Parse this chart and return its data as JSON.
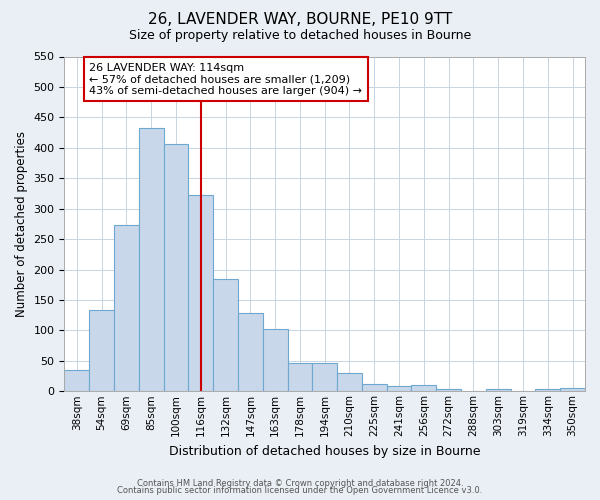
{
  "title": "26, LAVENDER WAY, BOURNE, PE10 9TT",
  "subtitle": "Size of property relative to detached houses in Bourne",
  "xlabel": "Distribution of detached houses by size in Bourne",
  "ylabel": "Number of detached properties",
  "bar_labels": [
    "38sqm",
    "54sqm",
    "69sqm",
    "85sqm",
    "100sqm",
    "116sqm",
    "132sqm",
    "147sqm",
    "163sqm",
    "178sqm",
    "194sqm",
    "210sqm",
    "225sqm",
    "241sqm",
    "256sqm",
    "272sqm",
    "288sqm",
    "303sqm",
    "319sqm",
    "334sqm",
    "350sqm"
  ],
  "bar_values": [
    35,
    133,
    273,
    433,
    407,
    323,
    184,
    128,
    103,
    46,
    46,
    30,
    12,
    8,
    10,
    4,
    0,
    4,
    0,
    4,
    5
  ],
  "bar_color": "#c8d8ea",
  "bar_edge_color": "#6ea8d0",
  "vline_x": 5.5,
  "vline_color": "#cc0000",
  "ylim": [
    0,
    550
  ],
  "yticks": [
    0,
    50,
    100,
    150,
    200,
    250,
    300,
    350,
    400,
    450,
    500,
    550
  ],
  "annotation_title": "26 LAVENDER WAY: 114sqm",
  "annotation_line1": "← 57% of detached houses are smaller (1,209)",
  "annotation_line2": "43% of semi-detached houses are larger (904) →",
  "annotation_box_color": "#ffffff",
  "annotation_box_edge": "#cc0000",
  "footer1": "Contains HM Land Registry data © Crown copyright and database right 2024.",
  "footer2": "Contains public sector information licensed under the Open Government Licence v3.0.",
  "bg_color": "#eaeff5",
  "plot_bg_color": "#ffffff",
  "grid_color": "#c8d4e0"
}
